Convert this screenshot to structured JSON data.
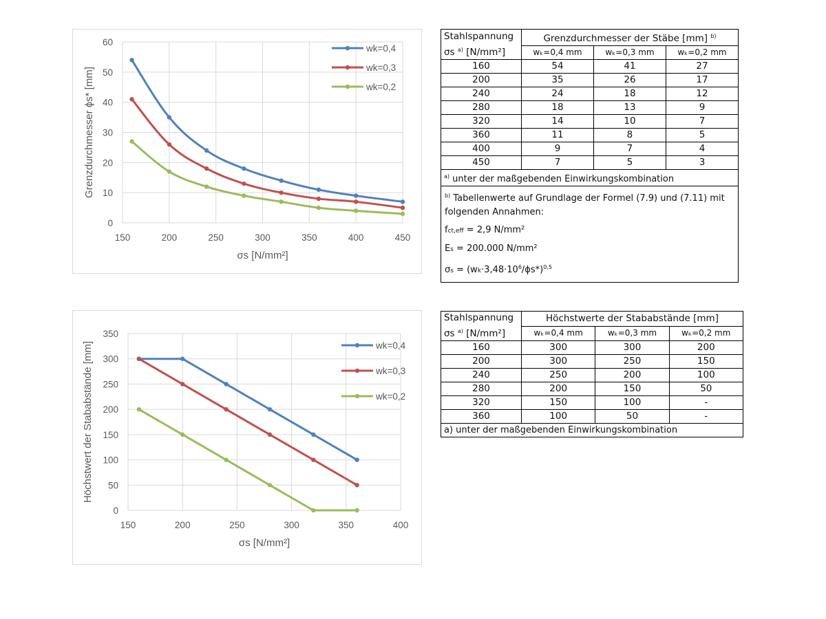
{
  "chart_data": [
    {
      "type": "line",
      "x": [
        160,
        200,
        240,
        280,
        320,
        360,
        400,
        450
      ],
      "series": [
        {
          "name": "wk=0,4",
          "color": "#4f81bd",
          "values": [
            54,
            35,
            24,
            18,
            14,
            11,
            9,
            7
          ]
        },
        {
          "name": "wk=0,3",
          "color": "#c0504d",
          "values": [
            41,
            26,
            18,
            13,
            10,
            8,
            7,
            5
          ]
        },
        {
          "name": "wk=0,2",
          "color": "#9bbb59",
          "values": [
            27,
            17,
            12,
            9,
            7,
            5,
            4,
            3
          ]
        }
      ],
      "smooth": true,
      "xlim": [
        150,
        450
      ],
      "ylim": [
        0,
        60
      ],
      "xticks": [
        "150",
        "200",
        "250",
        "300",
        "350",
        "400",
        "450"
      ],
      "yticks": [
        "0",
        "10",
        "20",
        "30",
        "40",
        "50",
        "60"
      ],
      "xlabel": "σs [N/mm²]",
      "ylabel": "Grenzdurchmesser ϕs* [mm]",
      "grid": true,
      "legend": "top-right"
    },
    {
      "type": "line",
      "x": [
        160,
        200,
        240,
        280,
        320,
        360
      ],
      "series": [
        {
          "name": "wk=0,4",
          "color": "#4f81bd",
          "values": [
            300,
            300,
            250,
            200,
            150,
            100
          ]
        },
        {
          "name": "wk=0,3",
          "color": "#c0504d",
          "values": [
            300,
            250,
            200,
            150,
            100,
            50
          ]
        },
        {
          "name": "wk=0,2",
          "color": "#9bbb59",
          "values": [
            200,
            150,
            100,
            50,
            0,
            0
          ]
        }
      ],
      "smooth": false,
      "xlim": [
        150,
        400
      ],
      "ylim": [
        0,
        350
      ],
      "xticks": [
        "150",
        "200",
        "250",
        "300",
        "350",
        "400"
      ],
      "yticks": [
        "0",
        "50",
        "100",
        "150",
        "200",
        "250",
        "300",
        "350"
      ],
      "xlabel": "σs [N/mm²]",
      "ylabel": "Höchstwert der Stababstände [mm]",
      "grid": true,
      "legend": "top-right"
    }
  ],
  "table1": {
    "col1_line1": "Stahlspannung",
    "col1_line2": "σs",
    "col1_sup": "a)",
    "col1_unit": "[N/mm²]",
    "group_header": "Grenzdurchmesser der Stäbe [mm]",
    "group_sup": "b)",
    "sub_headers": [
      "wₖ=0,4 mm",
      "wₖ=0,3 mm",
      "wₖ=0,2 mm"
    ],
    "rows": [
      [
        "160",
        "54",
        "41",
        "27"
      ],
      [
        "200",
        "35",
        "26",
        "17"
      ],
      [
        "240",
        "24",
        "18",
        "12"
      ],
      [
        "280",
        "18",
        "13",
        "9"
      ],
      [
        "320",
        "14",
        "10",
        "7"
      ],
      [
        "360",
        "11",
        "8",
        "5"
      ],
      [
        "400",
        "9",
        "7",
        "4"
      ],
      [
        "450",
        "7",
        "5",
        "3"
      ]
    ],
    "note_a_marker": "a)",
    "note_a": "unter der maßgebenden Einwirkungskombination",
    "note_b_marker": "b)",
    "note_b": "Tabellenwerte auf Grundlage der Formel (7.9) und (7.11) mit folgenden Annahmen:",
    "f1_main": "f",
    "f1_sub": "ct,eff",
    "f1_rest": " = 2,9 N/mm²",
    "f2_main": "E",
    "f2_sub": "s",
    "f2_rest": " = 200.000 N/mm²",
    "f3_main": "σ",
    "f3_sub": "s",
    "f3_mid": " = (w",
    "f3_sub2": "k",
    "f3_mid2": "·3,48·10",
    "f3_sup": "6",
    "f3_mid3": "/ϕs*)",
    "f3_sup2": "0,5"
  },
  "table2": {
    "col1_line1": "Stahlspannung",
    "col1_line2": "σs",
    "col1_sup": "a)",
    "col1_unit": "[N/mm²]",
    "group_header": "Höchstwerte der Stababstände [mm]",
    "sub_headers": [
      "wₖ=0,4 mm",
      "wₖ=0,3 mm",
      "wₖ=0,2 mm"
    ],
    "rows": [
      [
        "160",
        "300",
        "300",
        "200"
      ],
      [
        "200",
        "300",
        "250",
        "150"
      ],
      [
        "240",
        "250",
        "200",
        "100"
      ],
      [
        "280",
        "200",
        "150",
        "50"
      ],
      [
        "320",
        "150",
        "100",
        "-"
      ],
      [
        "360",
        "100",
        "50",
        "-"
      ]
    ],
    "note": "a) unter der maßgebenden Einwirkungskombination"
  }
}
